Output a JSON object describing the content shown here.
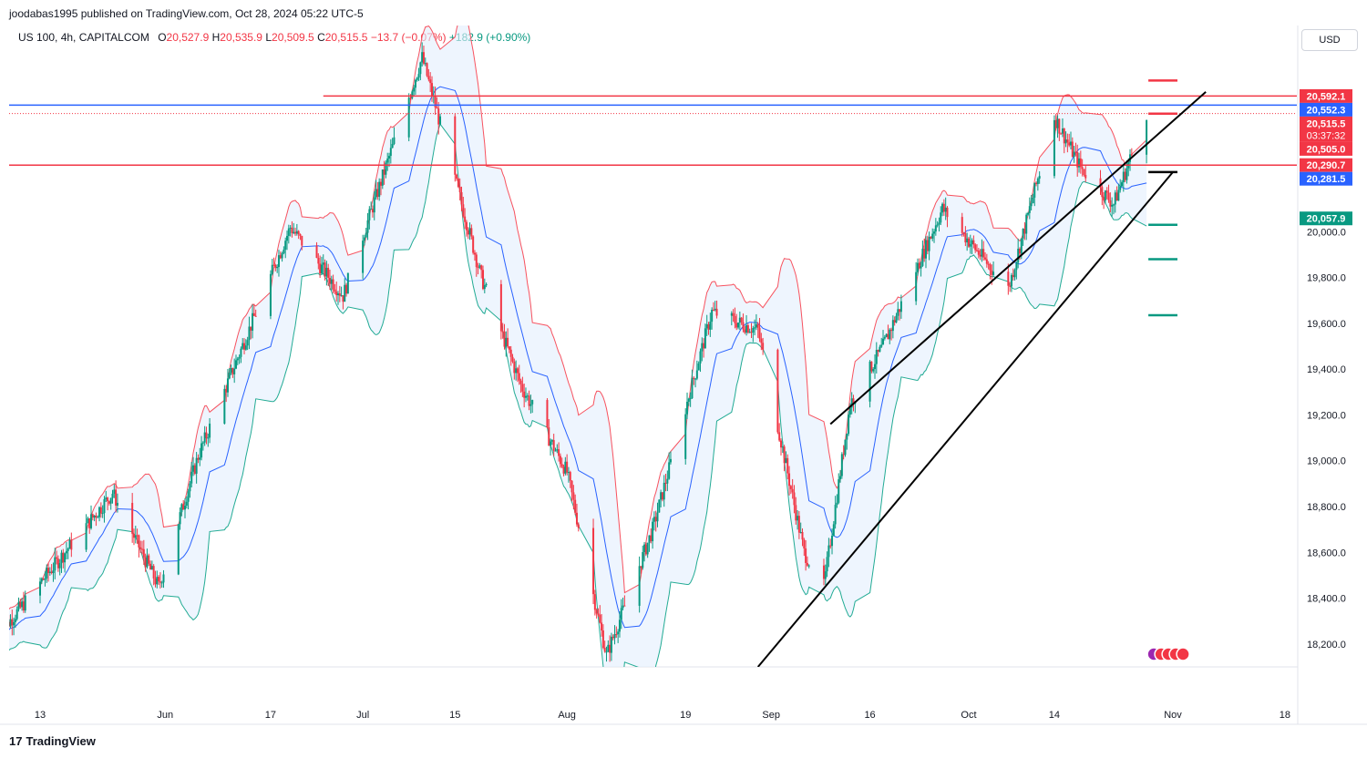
{
  "publisher": "joodabas1995 published on TradingView.com, Oct 28, 2024 05:22 UTC-5",
  "legend": {
    "symbol": "US 100, 4h, CAPITALCOM",
    "o_label": "O",
    "o": "20,527.9",
    "h_label": "H",
    "h": "20,535.9",
    "l_label": "L",
    "l": "20,509.5",
    "c_label": "C",
    "c": "20,515.5",
    "change": "−13.7 (−0.07%)",
    "volume_change": "+182.9 (+0.90%)"
  },
  "currency_button": "USD",
  "brand": {
    "logo": "17",
    "name": "TradingView"
  },
  "colors": {
    "red": "#f23645",
    "blue": "#2962ff",
    "green": "#089981",
    "band_upper": "#f7525f",
    "band_lower": "#22ab94",
    "basis": "#2962ff",
    "band_fill": "#e3effd"
  },
  "chart_data": {
    "type": "candlestick",
    "y_axis": {
      "range": [
        18100,
        20900
      ],
      "ticks": [
        {
          "value": 18200,
          "label": "18,200.0"
        },
        {
          "value": 18400,
          "label": "18,400.0"
        },
        {
          "value": 18600,
          "label": "18,600.0"
        },
        {
          "value": 18800,
          "label": "18,800.0"
        },
        {
          "value": 19000,
          "label": "19,000.0"
        },
        {
          "value": 19200,
          "label": "19,200.0"
        },
        {
          "value": 19400,
          "label": "19,400.0"
        },
        {
          "value": 19600,
          "label": "19,600.0"
        },
        {
          "value": 19800,
          "label": "19,800.0"
        },
        {
          "value": 20000,
          "label": "20,000.0"
        }
      ]
    },
    "x_axis": {
      "ticks": [
        {
          "date": "2024-05-13",
          "label": "13"
        },
        {
          "date": "2024-06-01",
          "label": "Jun"
        },
        {
          "date": "2024-06-17",
          "label": "17"
        },
        {
          "date": "2024-07-01",
          "label": "Jul"
        },
        {
          "date": "2024-07-15",
          "label": "15"
        },
        {
          "date": "2024-08-01",
          "label": "Aug"
        },
        {
          "date": "2024-08-19",
          "label": "19"
        },
        {
          "date": "2024-09-01",
          "label": "Sep"
        },
        {
          "date": "2024-09-16",
          "label": "16"
        },
        {
          "date": "2024-10-01",
          "label": "Oct"
        },
        {
          "date": "2024-10-14",
          "label": "14"
        },
        {
          "date": "2024-11-01",
          "label": "Nov"
        },
        {
          "date": "2024-11-18",
          "label": "18"
        }
      ]
    },
    "price_badges": [
      {
        "value": 20592.1,
        "label": "20,592.1",
        "color": "#f23645"
      },
      {
        "value": 20552.3,
        "label": "20,552.3",
        "color": "#2962ff"
      },
      {
        "value": 20515.5,
        "label": "20,515.5",
        "sublabel": "03:37:32",
        "color": "#f23645"
      },
      {
        "value": 20505.0,
        "label": "20,505.0",
        "color": "#f23645"
      },
      {
        "value": 20290.7,
        "label": "20,290.7",
        "color": "#f23645"
      },
      {
        "value": 20281.5,
        "label": "20,281.5",
        "color": "#2962ff"
      },
      {
        "value": 20057.9,
        "label": "20,057.9",
        "color": "#089981"
      }
    ],
    "horizontal_levels": [
      {
        "value": 20592.1,
        "color": "#f23645",
        "from": "2024-06-25"
      },
      {
        "value": 20552.3,
        "color": "#2962ff",
        "from": "2024-05-07"
      },
      {
        "value": 20290.7,
        "color": "#f23645",
        "from": "2024-05-01"
      }
    ],
    "target_marks": [
      {
        "value": 20660,
        "color": "#f23645"
      },
      {
        "value": 20515,
        "color": "#f23645"
      },
      {
        "value": 20260,
        "color": "#000000"
      },
      {
        "value": 20030,
        "color": "#089981"
      },
      {
        "value": 19880,
        "color": "#089981"
      },
      {
        "value": 19635,
        "color": "#089981"
      }
    ],
    "trendlines": [
      {
        "from": {
          "date": "2024-09-10",
          "value": 19160
        },
        "to": {
          "date": "2024-11-06",
          "value": 20610
        }
      },
      {
        "from": {
          "date": "2024-08-30",
          "value": 18100
        },
        "to": {
          "date": "2024-11-01",
          "value": 20260
        }
      }
    ]
  }
}
